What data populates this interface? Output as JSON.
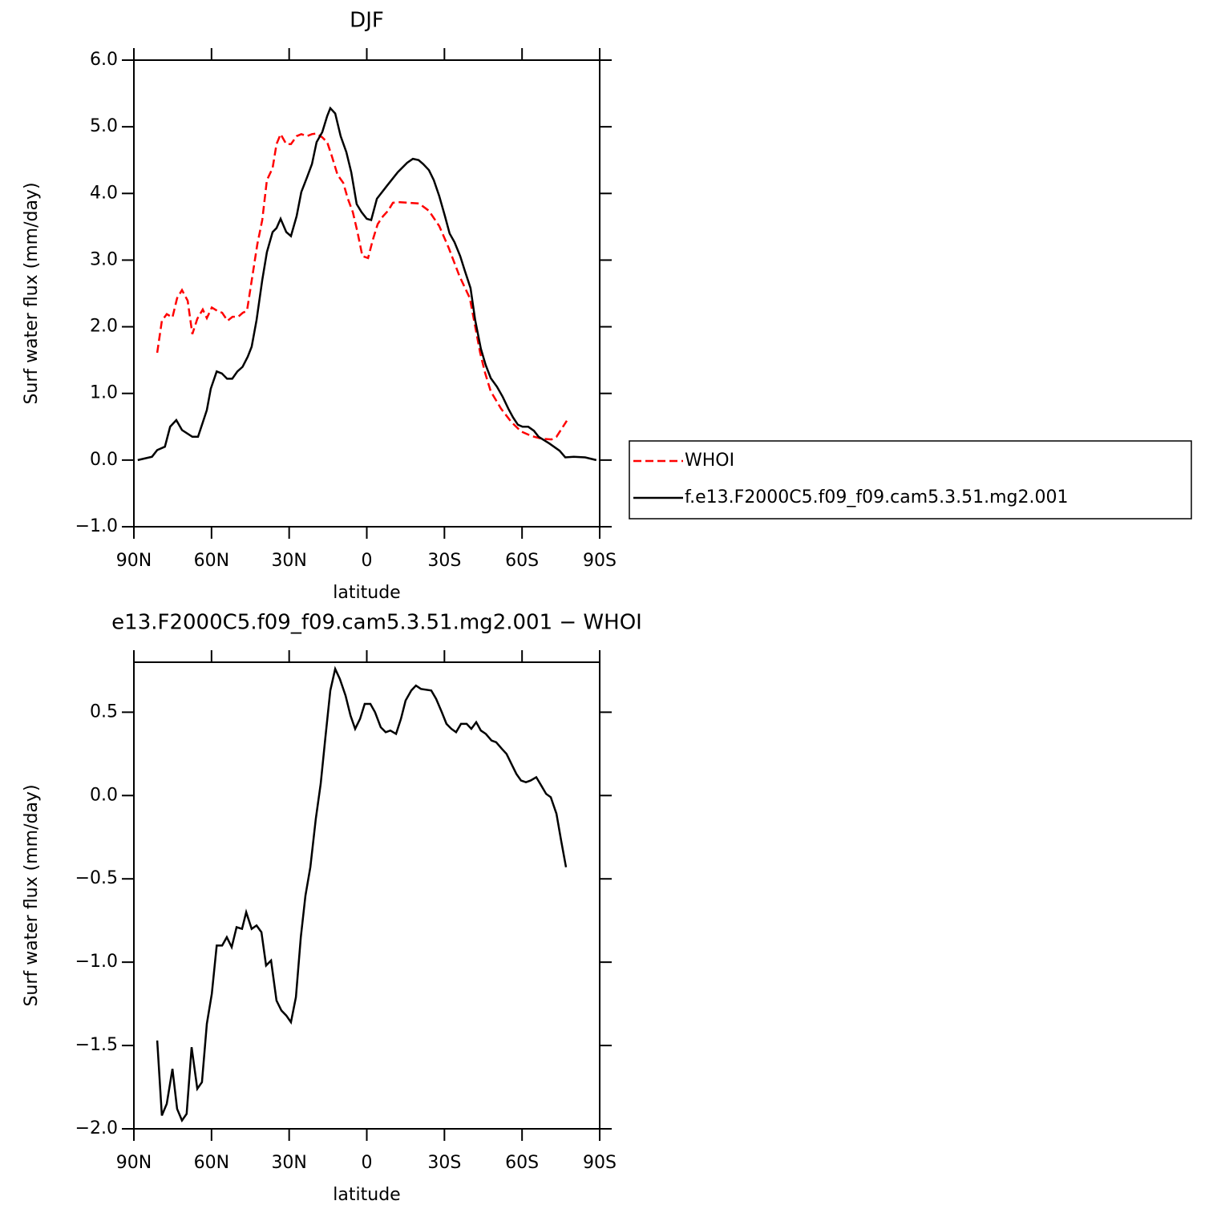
{
  "chart_data": [
    {
      "type": "line",
      "title": "DJF",
      "xlabel": "latitude",
      "ylabel": "Surf water flux (mm/day)",
      "xlim": [
        90,
        -90
      ],
      "xticks": [
        {
          "value": 90,
          "label": "90N"
        },
        {
          "value": 60,
          "label": "60N"
        },
        {
          "value": 30,
          "label": "30N"
        },
        0,
        {
          "value": -30,
          "label": "30S"
        },
        {
          "value": -60,
          "label": "60S"
        },
        {
          "value": -90,
          "label": "90S"
        }
      ],
      "ylim": [
        -1.0,
        6.0
      ],
      "yticks": [
        {
          "value": -1,
          "label": "−1.0"
        },
        {
          "value": 0,
          "label": "0.0"
        },
        {
          "value": 1,
          "label": "1.0"
        },
        {
          "value": 2,
          "label": "2.0"
        },
        {
          "value": 3,
          "label": "3.0"
        },
        {
          "value": 4,
          "label": "4.0"
        },
        {
          "value": 5,
          "label": "5.0"
        },
        {
          "value": 6,
          "label": "6.0"
        }
      ],
      "legend": "right",
      "series": [
        {
          "name": "WHOI",
          "color": "#ff0000",
          "line_style": "dashed",
          "x": [
            81,
            79.2,
            77.3,
            75.1,
            73.3,
            71.4,
            69.2,
            67.4,
            65.5,
            63.4,
            61.8,
            59.9,
            57.8,
            55.9,
            53.8,
            51.9,
            49.7,
            47.9,
            46.3,
            44.2,
            42.3,
            40.4,
            38.6,
            36.4,
            34.9,
            33.3,
            31.1,
            29.3,
            27.1,
            25.3,
            23.1,
            21.2,
            19.4,
            17.2,
            15.3,
            13.5,
            11.3,
            9.1,
            7.3,
            5.4,
            3.6,
            1.7,
            -0.5,
            -2.3,
            -4.2,
            -6.3,
            -8.2,
            -10.1,
            -12.2,
            -16.2,
            -20.2,
            -24,
            -28,
            -31.7,
            -35.8,
            -39.8,
            -43.8,
            -45.7,
            -47.9,
            -51.9,
            -55.9,
            -59.6,
            -63.7,
            -67.7,
            -71.4,
            -73.3,
            -77.3
          ],
          "values": [
            1.61,
            2.09,
            2.19,
            2.14,
            2.43,
            2.55,
            2.39,
            1.89,
            2.12,
            2.26,
            2.13,
            2.29,
            2.24,
            2.21,
            2.09,
            2.15,
            2.15,
            2.21,
            2.24,
            2.76,
            3.24,
            3.6,
            4.2,
            4.38,
            4.74,
            4.89,
            4.74,
            4.74,
            4.86,
            4.89,
            4.86,
            4.89,
            4.9,
            4.84,
            4.77,
            4.56,
            4.28,
            4.16,
            3.92,
            3.72,
            3.42,
            3.06,
            3.03,
            3.3,
            3.54,
            3.66,
            3.74,
            3.86,
            3.87,
            3.86,
            3.85,
            3.74,
            3.51,
            3.18,
            2.76,
            2.43,
            1.61,
            1.31,
            1.03,
            0.77,
            0.57,
            0.43,
            0.36,
            0.32,
            0.31,
            0.35,
            0.59
          ]
        },
        {
          "name": "f.e13.F2000C5.f09_f09.cam5.3.51.mg2.001",
          "color": "#000000",
          "line_style": "solid",
          "x": [
            88.5,
            83,
            81,
            78,
            76,
            73.6,
            71.4,
            67.4,
            65.2,
            61.8,
            60.3,
            58,
            56,
            54,
            52,
            50,
            48,
            46,
            44.5,
            42.6,
            40.4,
            38.6,
            36.4,
            34.9,
            33.3,
            31.1,
            29.3,
            27.1,
            25.3,
            23.1,
            21.2,
            19.4,
            17.2,
            15.3,
            14.1,
            12.2,
            10.1,
            7.9,
            6,
            3.9,
            2,
            0,
            -1.7,
            -3.9,
            -7.9,
            -12,
            -15.6,
            -17.8,
            -20,
            -21.8,
            -24,
            -25.9,
            -28,
            -30.2,
            -32,
            -33.9,
            -36.1,
            -37.9,
            -40.1,
            -41.9,
            -44.1,
            -45.9,
            -47.9,
            -50.3,
            -52.5,
            -54.7,
            -56.5,
            -58.4,
            -60.2,
            -62.4,
            -64.6,
            -66.4,
            -70.5,
            -74.5,
            -76.7,
            -80,
            -84.4,
            -88.7
          ],
          "values": [
            0,
            0.05,
            0.15,
            0.2,
            0.5,
            0.6,
            0.45,
            0.35,
            0.35,
            0.75,
            1.07,
            1.33,
            1.3,
            1.22,
            1.22,
            1.33,
            1.4,
            1.55,
            1.7,
            2.1,
            2.7,
            3.12,
            3.42,
            3.48,
            3.62,
            3.42,
            3.36,
            3.66,
            4.02,
            4.24,
            4.44,
            4.77,
            4.92,
            5.16,
            5.28,
            5.2,
            4.86,
            4.62,
            4.32,
            3.84,
            3.72,
            3.62,
            3.6,
            3.92,
            4.12,
            4.32,
            4.46,
            4.52,
            4.5,
            4.44,
            4.35,
            4.2,
            3.96,
            3.66,
            3.4,
            3.27,
            3.06,
            2.84,
            2.58,
            2.1,
            1.67,
            1.43,
            1.23,
            1.1,
            0.95,
            0.77,
            0.64,
            0.53,
            0.5,
            0.5,
            0.44,
            0.35,
            0.25,
            0.14,
            0.04,
            0.05,
            0.04,
            0
          ]
        }
      ]
    },
    {
      "type": "line",
      "title": "e13.F2000C5.f09_f09.cam5.3.51.mg2.001 − WHOI",
      "xlabel": "latitude",
      "ylabel": "Surf water flux (mm/day)",
      "xlim": [
        90,
        -90
      ],
      "xticks": [
        {
          "value": 90,
          "label": "90N"
        },
        {
          "value": 60,
          "label": "60N"
        },
        {
          "value": 30,
          "label": "30N"
        },
        0,
        {
          "value": -30,
          "label": "30S"
        },
        {
          "value": -60,
          "label": "60S"
        },
        {
          "value": -90,
          "label": "90S"
        }
      ],
      "ylim": [
        -2.0,
        0.8
      ],
      "yticks": [
        {
          "value": -2,
          "label": "−2.0"
        },
        {
          "value": -1.5,
          "label": "−1.5"
        },
        {
          "value": -1,
          "label": "−1.0"
        },
        {
          "value": -0.5,
          "label": "−0.5"
        },
        {
          "value": 0,
          "label": "0.0"
        },
        0.5
      ],
      "series": [
        {
          "color": "#000000",
          "line_style": "solid",
          "x": [
            81,
            79.2,
            77.3,
            75.1,
            73.3,
            71.4,
            69.6,
            67.7,
            65.5,
            63.7,
            61.8,
            59.9,
            58,
            55.9,
            54.1,
            52.2,
            50.3,
            48.2,
            46.6,
            44.5,
            42.6,
            40.7,
            38.9,
            37,
            34.9,
            33,
            31.1,
            29.3,
            27.4,
            25.5,
            23.7,
            21.8,
            19.7,
            17.8,
            16,
            14.1,
            12.2,
            10.4,
            8.2,
            6.3,
            4.5,
            2.6,
            0.8,
            -1.4,
            -3.2,
            -5.4,
            -7.3,
            -9.1,
            -11.3,
            -13.2,
            -15,
            -17.2,
            -19,
            -20.9,
            -24.9,
            -26.8,
            -29,
            -30.8,
            -32.7,
            -34.5,
            -36.4,
            -38.6,
            -40.4,
            -42.3,
            -44.1,
            -46,
            -48.2,
            -50,
            -52.2,
            -54,
            -55.9,
            -57.8,
            -59.6,
            -61.5,
            -63.3,
            -65.5,
            -67.4,
            -69.3,
            -71.1,
            -73.3,
            -75.1,
            -77
          ],
          "values": [
            -1.47,
            -1.92,
            -1.85,
            -1.64,
            -1.88,
            -1.95,
            -1.91,
            -1.51,
            -1.76,
            -1.72,
            -1.37,
            -1.19,
            -0.9,
            -0.9,
            -0.85,
            -0.91,
            -0.79,
            -0.8,
            -0.7,
            -0.8,
            -0.78,
            -0.82,
            -1.02,
            -0.99,
            -1.23,
            -1.29,
            -1.32,
            -1.36,
            -1.21,
            -0.85,
            -0.6,
            -0.43,
            -0.14,
            0.07,
            0.35,
            0.63,
            0.76,
            0.7,
            0.6,
            0.48,
            0.4,
            0.46,
            0.55,
            0.55,
            0.5,
            0.41,
            0.38,
            0.39,
            0.37,
            0.46,
            0.57,
            0.63,
            0.66,
            0.64,
            0.63,
            0.58,
            0.5,
            0.43,
            0.4,
            0.38,
            0.43,
            0.43,
            0.4,
            0.44,
            0.39,
            0.37,
            0.33,
            0.32,
            0.28,
            0.25,
            0.19,
            0.13,
            0.09,
            0.08,
            0.09,
            0.11,
            0.06,
            0.01,
            -0.01,
            -0.11,
            -0.27,
            -0.43
          ]
        }
      ]
    }
  ]
}
